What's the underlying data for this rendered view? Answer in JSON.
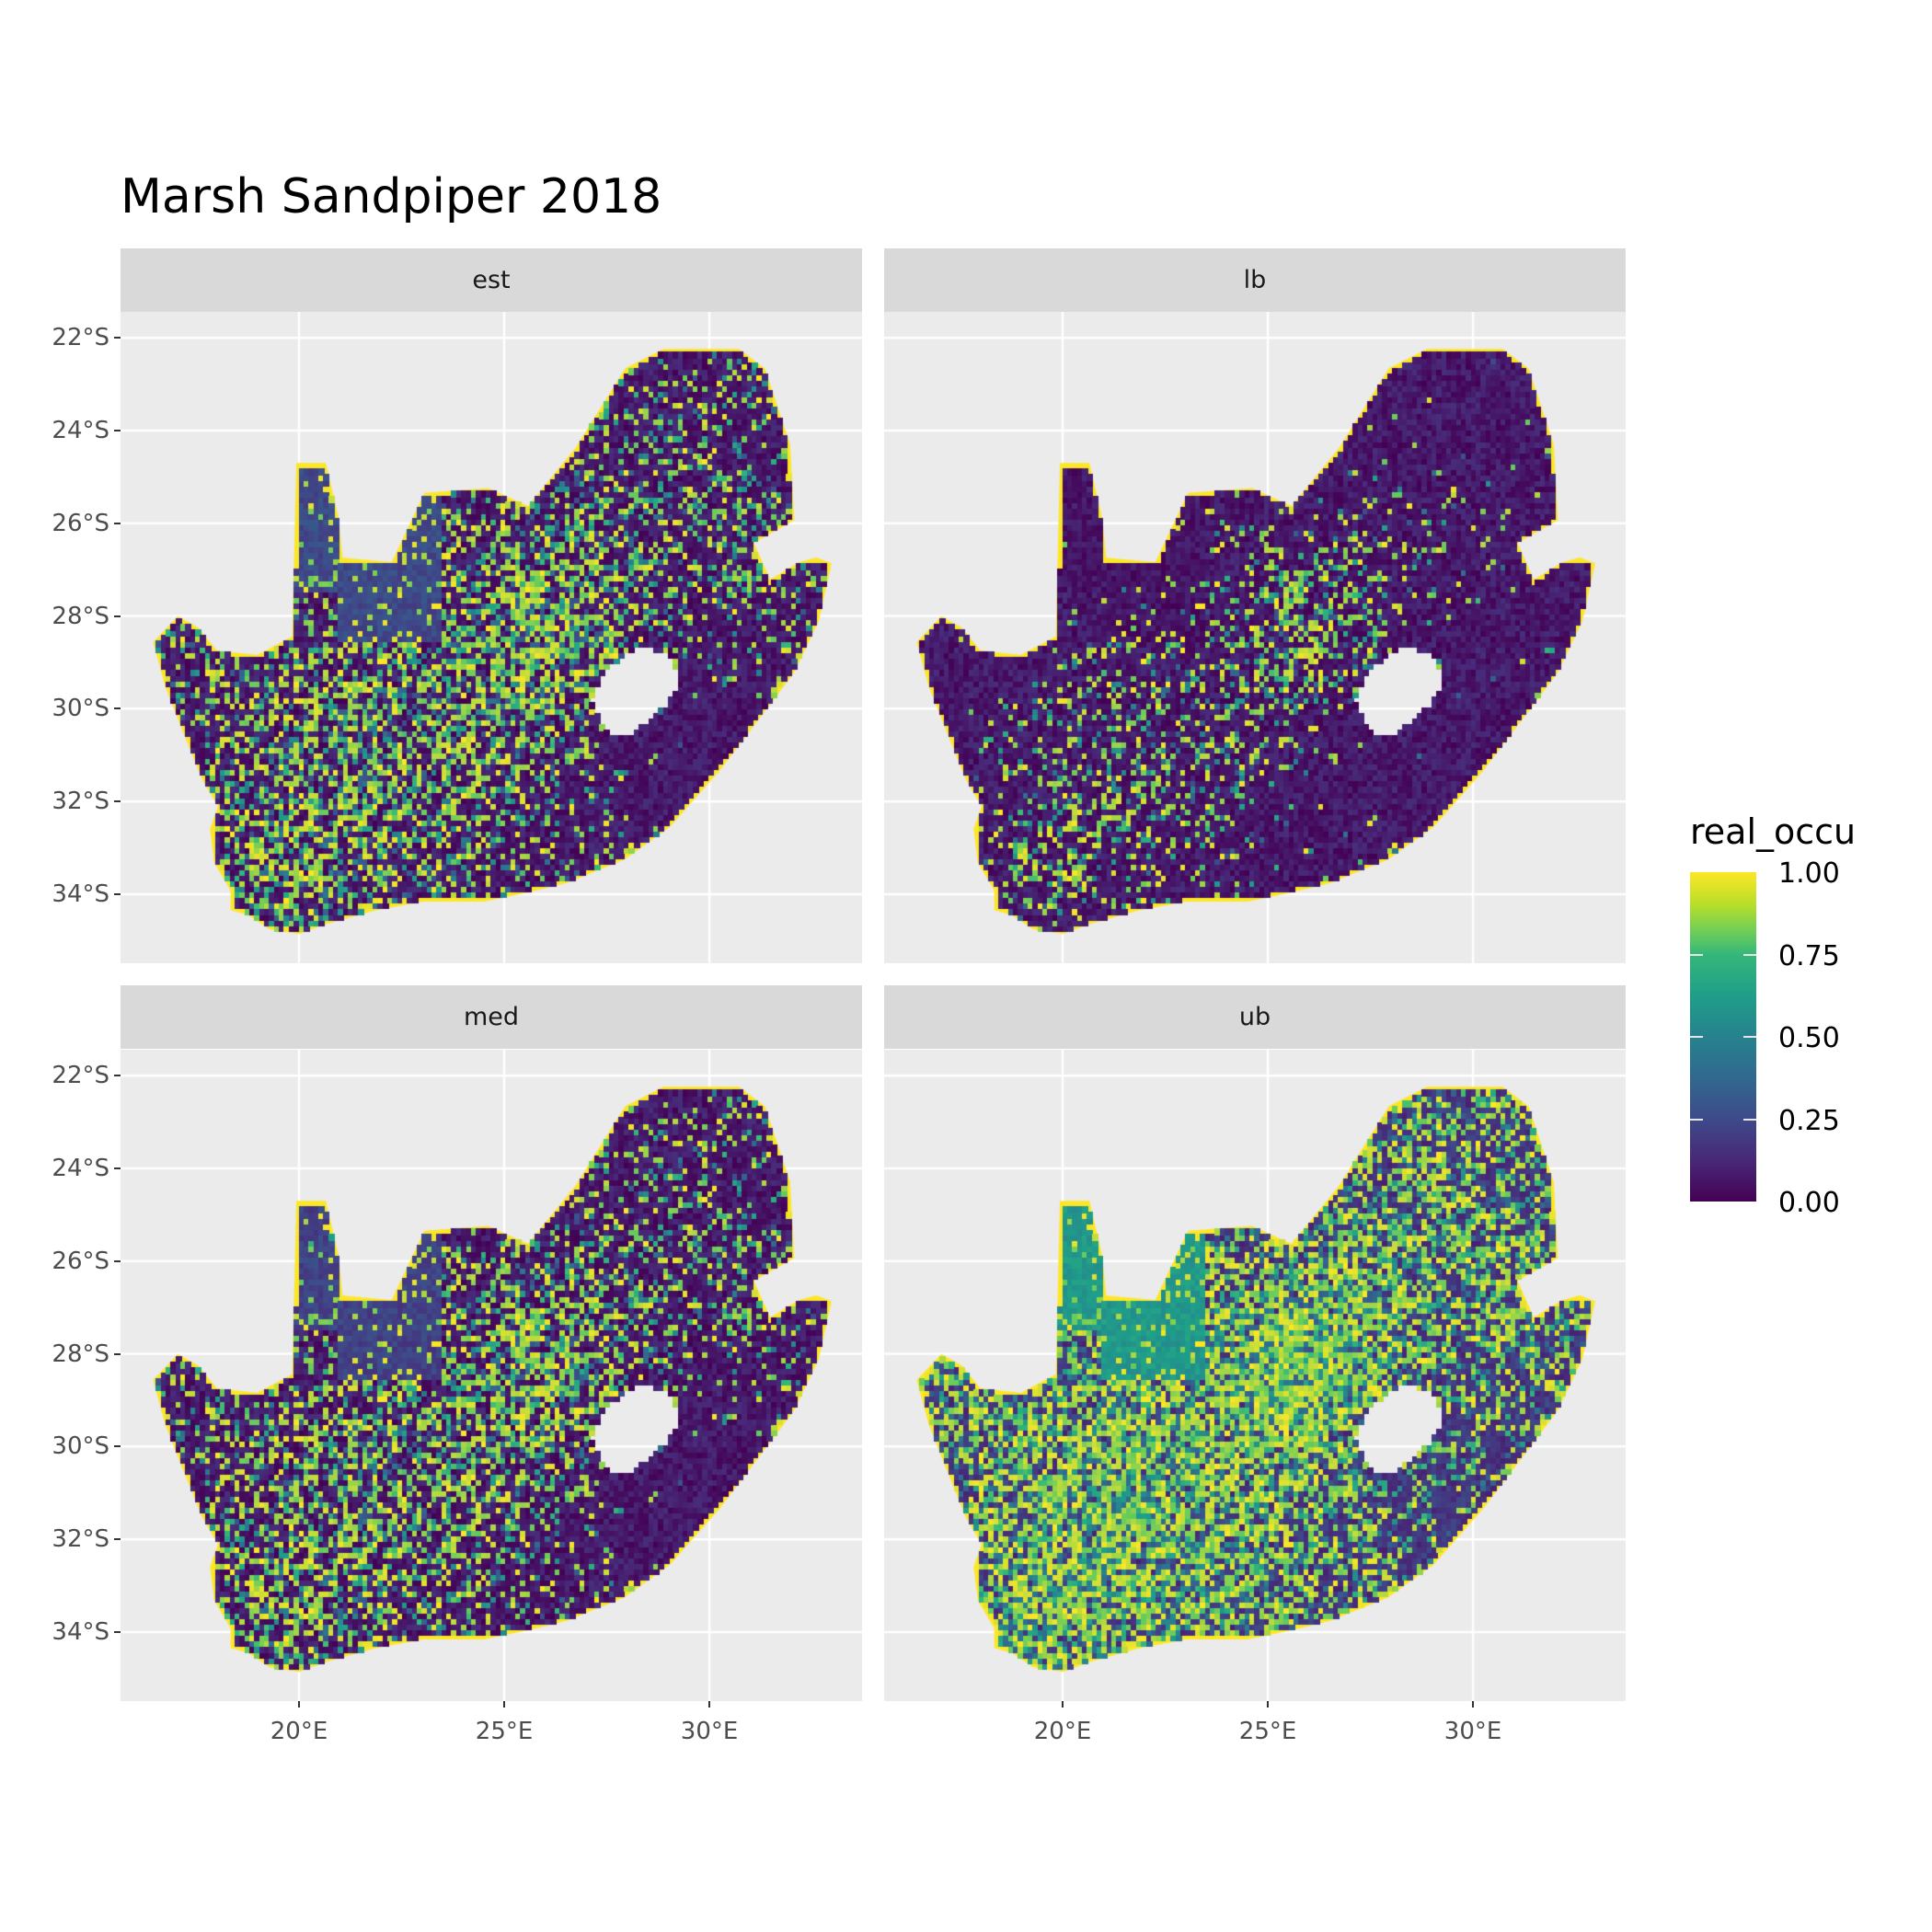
{
  "title": "Marsh Sandpiper 2018",
  "facets": [
    {
      "label": "est"
    },
    {
      "label": "lb"
    },
    {
      "label": "med"
    },
    {
      "label": "ub"
    }
  ],
  "axes": {
    "x_ticks": [
      "20°E",
      "25°E",
      "30°E"
    ],
    "x_tick_values": [
      20,
      25,
      30
    ],
    "y_ticks": [
      "22°S",
      "24°S",
      "26°S",
      "28°S",
      "30°S",
      "32°S",
      "34°S"
    ],
    "y_tick_values": [
      -22,
      -24,
      -26,
      -28,
      -30,
      -32,
      -34
    ],
    "lon_range": [
      15.65,
      33.72
    ],
    "lat_range": [
      -35.49,
      -21.44
    ]
  },
  "legend": {
    "title": "real_occu",
    "labels": [
      "1.00",
      "0.75",
      "0.50",
      "0.25",
      "0.00"
    ],
    "values": [
      1.0,
      0.75,
      0.5,
      0.25,
      0.0
    ],
    "colorscale": "viridis",
    "colors": [
      "#440154",
      "#3b528b",
      "#21918c",
      "#5ec962",
      "#fde725"
    ]
  },
  "colors": {
    "panel_background": "#ebebeb",
    "strip_background": "#d9d9d9",
    "grid": "#ffffff"
  }
}
